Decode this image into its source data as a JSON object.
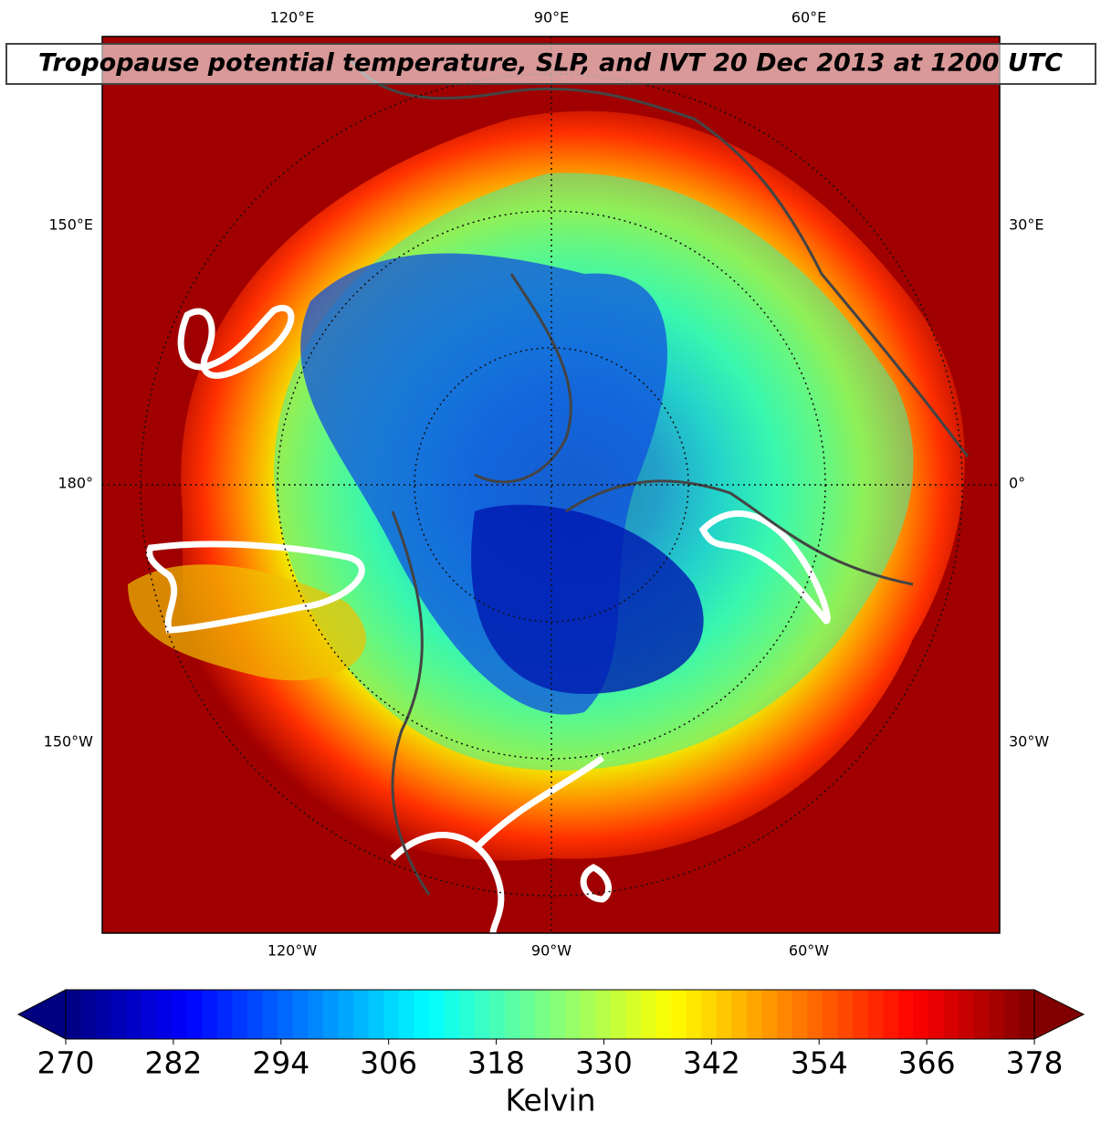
{
  "map": {
    "title": "Tropopause potential temperature, SLP, and IVT 20 Dec 2013 at 1200 UTC",
    "lon_labels": {
      "top": [
        "120°E",
        "90°E",
        "60°E"
      ],
      "left": [
        "150°E",
        "180°",
        "150°W"
      ],
      "right": [
        "30°E",
        "0°",
        "30°W"
      ],
      "bottom": [
        "120°W",
        "90°W",
        "60°W"
      ]
    }
  },
  "colorbar": {
    "colormap": "jet",
    "lim": [
      270,
      378
    ],
    "ticks": [
      270,
      282,
      294,
      306,
      318,
      330,
      342,
      354,
      366,
      378
    ],
    "label": "Kelvin"
  }
}
